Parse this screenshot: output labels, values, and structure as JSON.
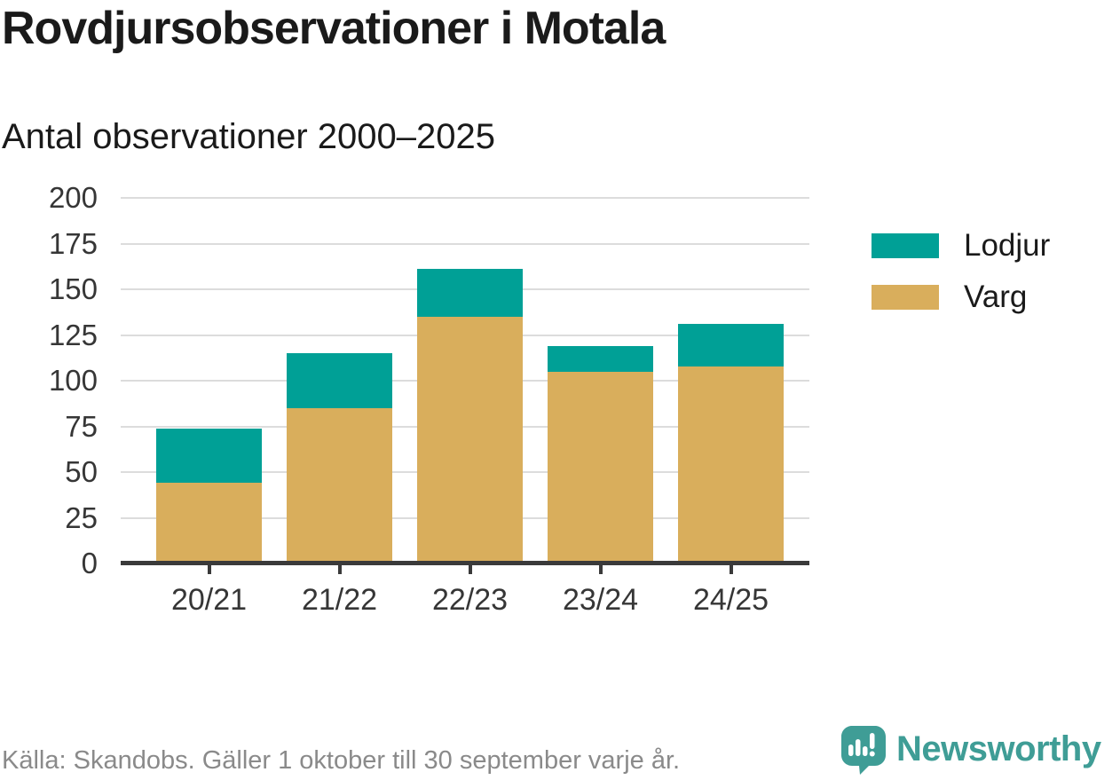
{
  "header": {
    "title": "Rovdjursobservationer i Motala",
    "subtitle": "Antal observationer 2000–2025"
  },
  "chart_data": {
    "type": "bar",
    "stacked": true,
    "title": "Rovdjursobservationer i Motala",
    "subtitle": "Antal observationer 2000–2025",
    "categories": [
      "20/21",
      "21/22",
      "22/23",
      "23/24",
      "24/25"
    ],
    "series": [
      {
        "name": "Lodjur",
        "color": "#00a096",
        "values": [
          30,
          30,
          26,
          14,
          23
        ]
      },
      {
        "name": "Varg",
        "color": "#d9ae5c",
        "values": [
          44,
          85,
          135,
          105,
          108
        ]
      }
    ],
    "stack_bottom_to_top": [
      "Varg",
      "Lodjur"
    ],
    "totals": [
      74,
      115,
      161,
      119,
      131
    ],
    "xlabel": "",
    "ylabel": "",
    "ylim": [
      0,
      200
    ],
    "yticks": [
      0,
      25,
      50,
      75,
      100,
      125,
      150,
      175,
      200
    ],
    "grid": true,
    "legend_position": "right"
  },
  "legend": {
    "items": [
      {
        "label": "Lodjur",
        "color": "#00a096"
      },
      {
        "label": "Varg",
        "color": "#d9ae5c"
      }
    ]
  },
  "footer": {
    "source": "Källa: Skandobs. Gäller 1 oktober till 30 september varje år.",
    "brand_name": "Newsworthy",
    "brand_icon": "speech-bubble-bar-chart-icon",
    "brand_color": "#3f9d96"
  },
  "colors": {
    "lodjur": "#00a096",
    "varg": "#d9ae5c",
    "gridline": "#dcdcdc",
    "axis": "#3a3a3a",
    "text": "#1a1a1a",
    "tick_text": "#363636",
    "source_text": "#8a8a8a",
    "brand": "#3f9d96"
  }
}
